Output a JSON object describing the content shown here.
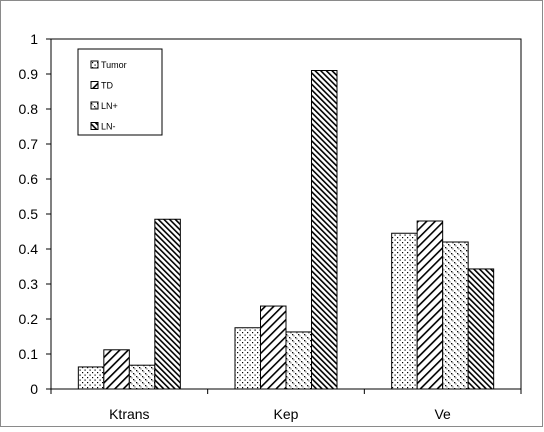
{
  "chart_data": {
    "type": "bar",
    "title": "",
    "xlabel": "",
    "ylabel": "",
    "categories": [
      "Ktrans",
      "Kep",
      "Ve"
    ],
    "ylim": [
      0,
      1
    ],
    "yticks": [
      "0",
      "0.1",
      "0.2",
      "0.3",
      "0.4",
      "0.5",
      "0.6",
      "0.7",
      "0.8",
      "0.9",
      "1"
    ],
    "grid": false,
    "legend_position": "top-left",
    "series": [
      {
        "name": "Tumor",
        "pattern": "dots",
        "values": [
          0.063,
          0.175,
          0.445
        ]
      },
      {
        "name": "TD",
        "pattern": "wide-diagonal",
        "values": [
          0.112,
          0.237,
          0.48
        ]
      },
      {
        "name": "LN+",
        "pattern": "diamond-dots",
        "values": [
          0.068,
          0.163,
          0.42
        ]
      },
      {
        "name": "LN-",
        "pattern": "dense-diagonal",
        "values": [
          0.485,
          0.91,
          0.343
        ]
      }
    ]
  }
}
